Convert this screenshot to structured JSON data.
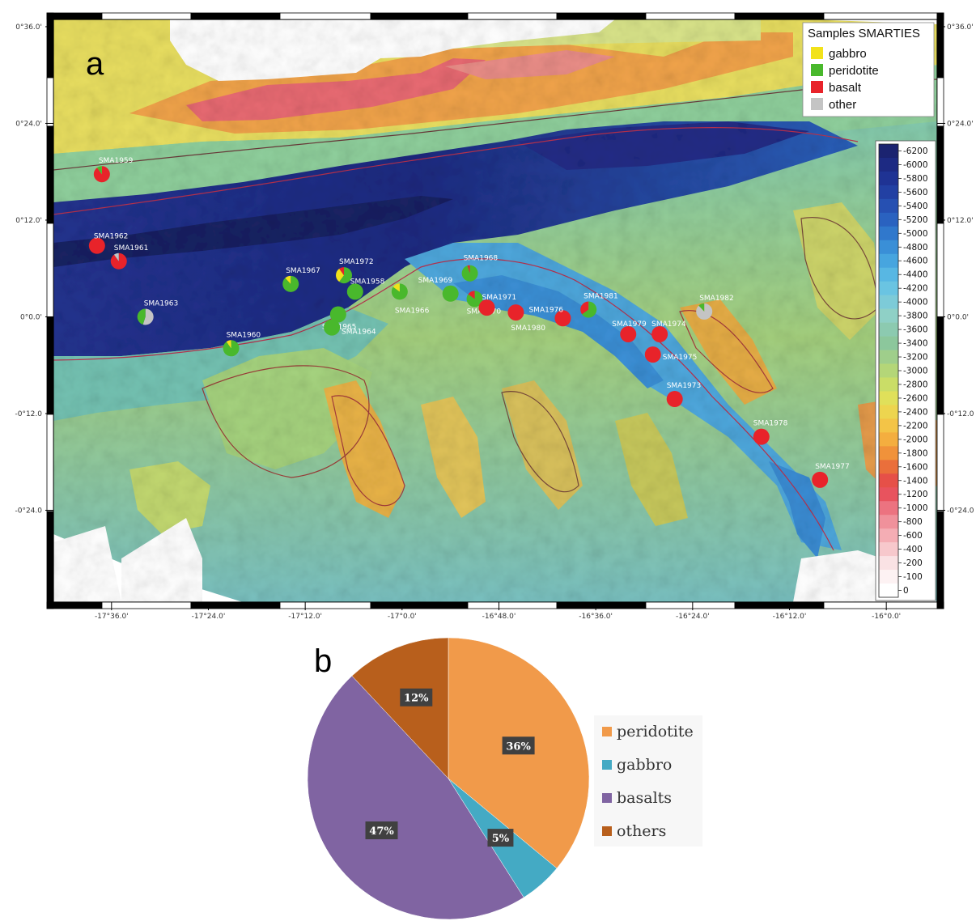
{
  "panel_a": {
    "letter": "a",
    "lat_ticks": [
      "0°36.0'",
      "0°24.0'",
      "0°12.0'",
      "0°0.0'",
      "-0°12.0",
      "-0°24.0"
    ],
    "lon_ticks": [
      "-17°36.0'",
      "-17°24.0'",
      "-17°12.0'",
      "-17°0.0'",
      "-16°48.0'",
      "-16°36.0'",
      "-16°24.0'",
      "-16°12.0'",
      "-16°0.0'"
    ],
    "legend": {
      "title": "Samples SMARTIES",
      "items": [
        {
          "label": "gabbro",
          "color": "#f2e21a"
        },
        {
          "label": "peridotite",
          "color": "#49b82c"
        },
        {
          "label": "basalt",
          "color": "#e8232a"
        },
        {
          "label": "other",
          "color": "#c4c4c4"
        }
      ]
    },
    "depth_scale": [
      "-6200",
      "-6000",
      "-5800",
      "-5600",
      "-5400",
      "-5200",
      "-5000",
      "-4800",
      "-4600",
      "-4400",
      "-4200",
      "-4000",
      "-3800",
      "-3600",
      "-3400",
      "-3200",
      "-3000",
      "-2800",
      "-2600",
      "-2400",
      "-2200",
      "-2000",
      "-1800",
      "-1600",
      "-1400",
      "-1200",
      "-1000",
      "-800",
      "-600",
      "-400",
      "-200",
      "-100",
      "0"
    ],
    "depth_colors": [
      "#1b2370",
      "#1d2a83",
      "#1f3394",
      "#2240a3",
      "#2650b2",
      "#2a62c0",
      "#3078cc",
      "#3a8fd7",
      "#47a5df",
      "#58b7e3",
      "#6ac4e2",
      "#7dcbd8",
      "#8fd0c6",
      "#8ccab0",
      "#8cc79c",
      "#9fce8b",
      "#b4d678",
      "#cadd67",
      "#e0e05a",
      "#edd54f",
      "#f3c447",
      "#f4ae3f",
      "#f0923a",
      "#ea6f3b",
      "#e65048",
      "#e8535e",
      "#ec7380",
      "#f0919b",
      "#f4adb4",
      "#f7c8cc",
      "#fae2e4",
      "#fdf2f3",
      "#ffffff"
    ],
    "samples": [
      {
        "id": "SMA1959",
        "lon": -17.62,
        "lat": 0.295,
        "comp": [
          {
            "t": "basalt",
            "f": 0.9
          },
          {
            "t": "peridotite",
            "f": 0.1
          }
        ]
      },
      {
        "id": "SMA1962",
        "lon": -17.63,
        "lat": 0.147,
        "comp": [
          {
            "t": "basalt",
            "f": 1.0
          }
        ]
      },
      {
        "id": "SMA1961",
        "lon": -17.585,
        "lat": 0.115,
        "comp": [
          {
            "t": "basalt",
            "f": 0.9
          },
          {
            "t": "other",
            "f": 0.1
          }
        ]
      },
      {
        "id": "SMA1963",
        "lon": -17.53,
        "lat": 0.0,
        "comp": [
          {
            "t": "other",
            "f": 0.55
          },
          {
            "t": "peridotite",
            "f": 0.45
          }
        ]
      },
      {
        "id": "SMA1967",
        "lon": -17.23,
        "lat": 0.068,
        "comp": [
          {
            "t": "peridotite",
            "f": 0.88
          },
          {
            "t": "gabbro",
            "f": 0.12
          }
        ]
      },
      {
        "id": "SMA1972",
        "lon": -17.12,
        "lat": 0.086,
        "comp": [
          {
            "t": "peridotite",
            "f": 0.6
          },
          {
            "t": "gabbro",
            "f": 0.3
          },
          {
            "t": "basalt",
            "f": 0.1
          }
        ]
      },
      {
        "id": "SMA1958",
        "lon": -17.097,
        "lat": 0.052,
        "comp": [
          {
            "t": "peridotite",
            "f": 1.0
          }
        ]
      },
      {
        "id": "SMA1965",
        "lon": -17.132,
        "lat": 0.005,
        "comp": [
          {
            "t": "peridotite",
            "f": 1.0
          }
        ]
      },
      {
        "id": "SMA1964",
        "lon": -17.145,
        "lat": -0.022,
        "comp": [
          {
            "t": "peridotite",
            "f": 1.0
          }
        ]
      },
      {
        "id": "SMA1966",
        "lon": -17.005,
        "lat": 0.052,
        "comp": [
          {
            "t": "peridotite",
            "f": 0.85
          },
          {
            "t": "gabbro",
            "f": 0.15
          }
        ]
      },
      {
        "id": "SMA1960",
        "lon": -17.353,
        "lat": -0.065,
        "comp": [
          {
            "t": "peridotite",
            "f": 0.9
          },
          {
            "t": "gabbro",
            "f": 0.1
          }
        ]
      },
      {
        "id": "SMA1969",
        "lon": -16.9,
        "lat": 0.048,
        "comp": [
          {
            "t": "peridotite",
            "f": 1.0
          }
        ]
      },
      {
        "id": "SMA1968",
        "lon": -16.86,
        "lat": 0.09,
        "comp": [
          {
            "t": "peridotite",
            "f": 0.95
          },
          {
            "t": "basalt",
            "f": 0.05
          }
        ]
      },
      {
        "id": "SMA1970",
        "lon": -16.85,
        "lat": 0.037,
        "comp": [
          {
            "t": "peridotite",
            "f": 0.85
          },
          {
            "t": "basalt",
            "f": 0.15
          }
        ]
      },
      {
        "id": "SMA1971",
        "lon": -16.825,
        "lat": 0.019,
        "comp": [
          {
            "t": "basalt",
            "f": 1.0
          }
        ]
      },
      {
        "id": "SMA1980",
        "lon": -16.765,
        "lat": 0.009,
        "comp": [
          {
            "t": "basalt",
            "f": 1.0
          }
        ]
      },
      {
        "id": "SMA1976",
        "lon": -16.668,
        "lat": -0.003,
        "comp": [
          {
            "t": "basalt",
            "f": 1.0
          }
        ]
      },
      {
        "id": "SMA1981",
        "lon": -16.615,
        "lat": 0.015,
        "comp": [
          {
            "t": "peridotite",
            "f": 0.65
          },
          {
            "t": "basalt",
            "f": 0.35
          }
        ]
      },
      {
        "id": "SMA1979",
        "lon": -16.533,
        "lat": -0.036,
        "comp": [
          {
            "t": "basalt",
            "f": 1.0
          }
        ]
      },
      {
        "id": "SMA1974",
        "lon": -16.468,
        "lat": -0.036,
        "comp": [
          {
            "t": "basalt",
            "f": 1.0
          }
        ]
      },
      {
        "id": "SMA1975",
        "lon": -16.482,
        "lat": -0.078,
        "comp": [
          {
            "t": "basalt",
            "f": 1.0
          }
        ]
      },
      {
        "id": "SMA1982",
        "lon": -16.376,
        "lat": 0.011,
        "comp": [
          {
            "t": "other",
            "f": 0.88
          },
          {
            "t": "peridotite",
            "f": 0.12
          }
        ]
      },
      {
        "id": "SMA1973",
        "lon": -16.437,
        "lat": -0.17,
        "comp": [
          {
            "t": "basalt",
            "f": 1.0
          }
        ]
      },
      {
        "id": "SMA1978",
        "lon": -16.258,
        "lat": -0.248,
        "comp": [
          {
            "t": "basalt",
            "f": 1.0
          }
        ]
      },
      {
        "id": "SMA1977",
        "lon": -16.137,
        "lat": -0.337,
        "comp": [
          {
            "t": "basalt",
            "f": 1.0
          }
        ]
      }
    ]
  },
  "panel_b": {
    "letter": "b",
    "chart_data": {
      "type": "pie",
      "slices": [
        {
          "label": "peridotite",
          "value": 36,
          "text": "36%",
          "color": "#f19a4a"
        },
        {
          "label": "gabbro",
          "value": 5,
          "text": "5%",
          "color": "#44aac4"
        },
        {
          "label": "basalts",
          "value": 47,
          "text": "47%",
          "color": "#8064a2"
        },
        {
          "label": "others",
          "value": 12,
          "text": "12%",
          "color": "#b85f1c"
        }
      ],
      "legend": [
        "peridotite",
        "gabbro",
        "basalts",
        "others"
      ]
    }
  }
}
